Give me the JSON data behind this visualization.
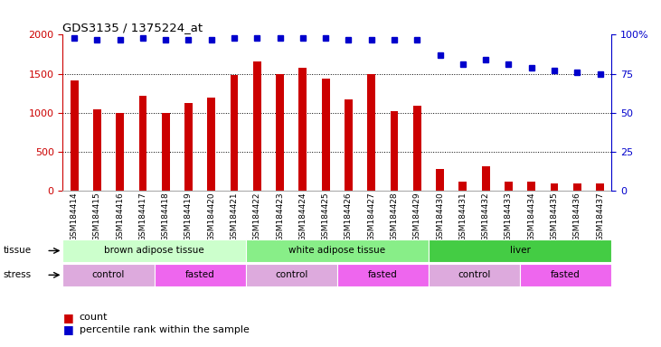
{
  "title": "GDS3135 / 1375224_at",
  "samples": [
    "GSM184414",
    "GSM184415",
    "GSM184416",
    "GSM184417",
    "GSM184418",
    "GSM184419",
    "GSM184420",
    "GSM184421",
    "GSM184422",
    "GSM184423",
    "GSM184424",
    "GSM184425",
    "GSM184426",
    "GSM184427",
    "GSM184428",
    "GSM184429",
    "GSM184430",
    "GSM184431",
    "GSM184432",
    "GSM184433",
    "GSM184434",
    "GSM184435",
    "GSM184436",
    "GSM184437"
  ],
  "counts": [
    1420,
    1040,
    1000,
    1220,
    1000,
    1120,
    1190,
    1480,
    1660,
    1490,
    1580,
    1440,
    1170,
    1500,
    1020,
    1090,
    280,
    120,
    320,
    120,
    120,
    100,
    90,
    90
  ],
  "percentiles": [
    98,
    97,
    97,
    98,
    97,
    97,
    97,
    98,
    98,
    98,
    98,
    98,
    97,
    97,
    97,
    97,
    87,
    81,
    84,
    81,
    79,
    77,
    76,
    75
  ],
  "bar_color": "#cc0000",
  "dot_color": "#0000cc",
  "ylim_left": [
    0,
    2000
  ],
  "ylim_right": [
    0,
    100
  ],
  "yticks_left": [
    0,
    500,
    1000,
    1500,
    2000
  ],
  "yticks_right": [
    0,
    25,
    50,
    75,
    100
  ],
  "tissue_groups": [
    {
      "label": "brown adipose tissue",
      "start": 0,
      "end": 8,
      "color": "#ccffcc"
    },
    {
      "label": "white adipose tissue",
      "start": 8,
      "end": 16,
      "color": "#88ee88"
    },
    {
      "label": "liver",
      "start": 16,
      "end": 24,
      "color": "#44cc44"
    }
  ],
  "stress_groups": [
    {
      "label": "control",
      "start": 0,
      "end": 4,
      "color": "#ddaadd"
    },
    {
      "label": "fasted",
      "start": 4,
      "end": 8,
      "color": "#ee66ee"
    },
    {
      "label": "control",
      "start": 8,
      "end": 12,
      "color": "#ddaadd"
    },
    {
      "label": "fasted",
      "start": 12,
      "end": 16,
      "color": "#ee66ee"
    },
    {
      "label": "control",
      "start": 16,
      "end": 20,
      "color": "#ddaadd"
    },
    {
      "label": "fasted",
      "start": 20,
      "end": 24,
      "color": "#ee66ee"
    }
  ],
  "legend_count_label": "count",
  "legend_pct_label": "percentile rank within the sample",
  "tissue_label": "tissue",
  "stress_label": "stress",
  "background_color": "#ffffff",
  "plot_bg_color": "#ffffff",
  "grid_color": "#000000",
  "bar_width": 0.35
}
